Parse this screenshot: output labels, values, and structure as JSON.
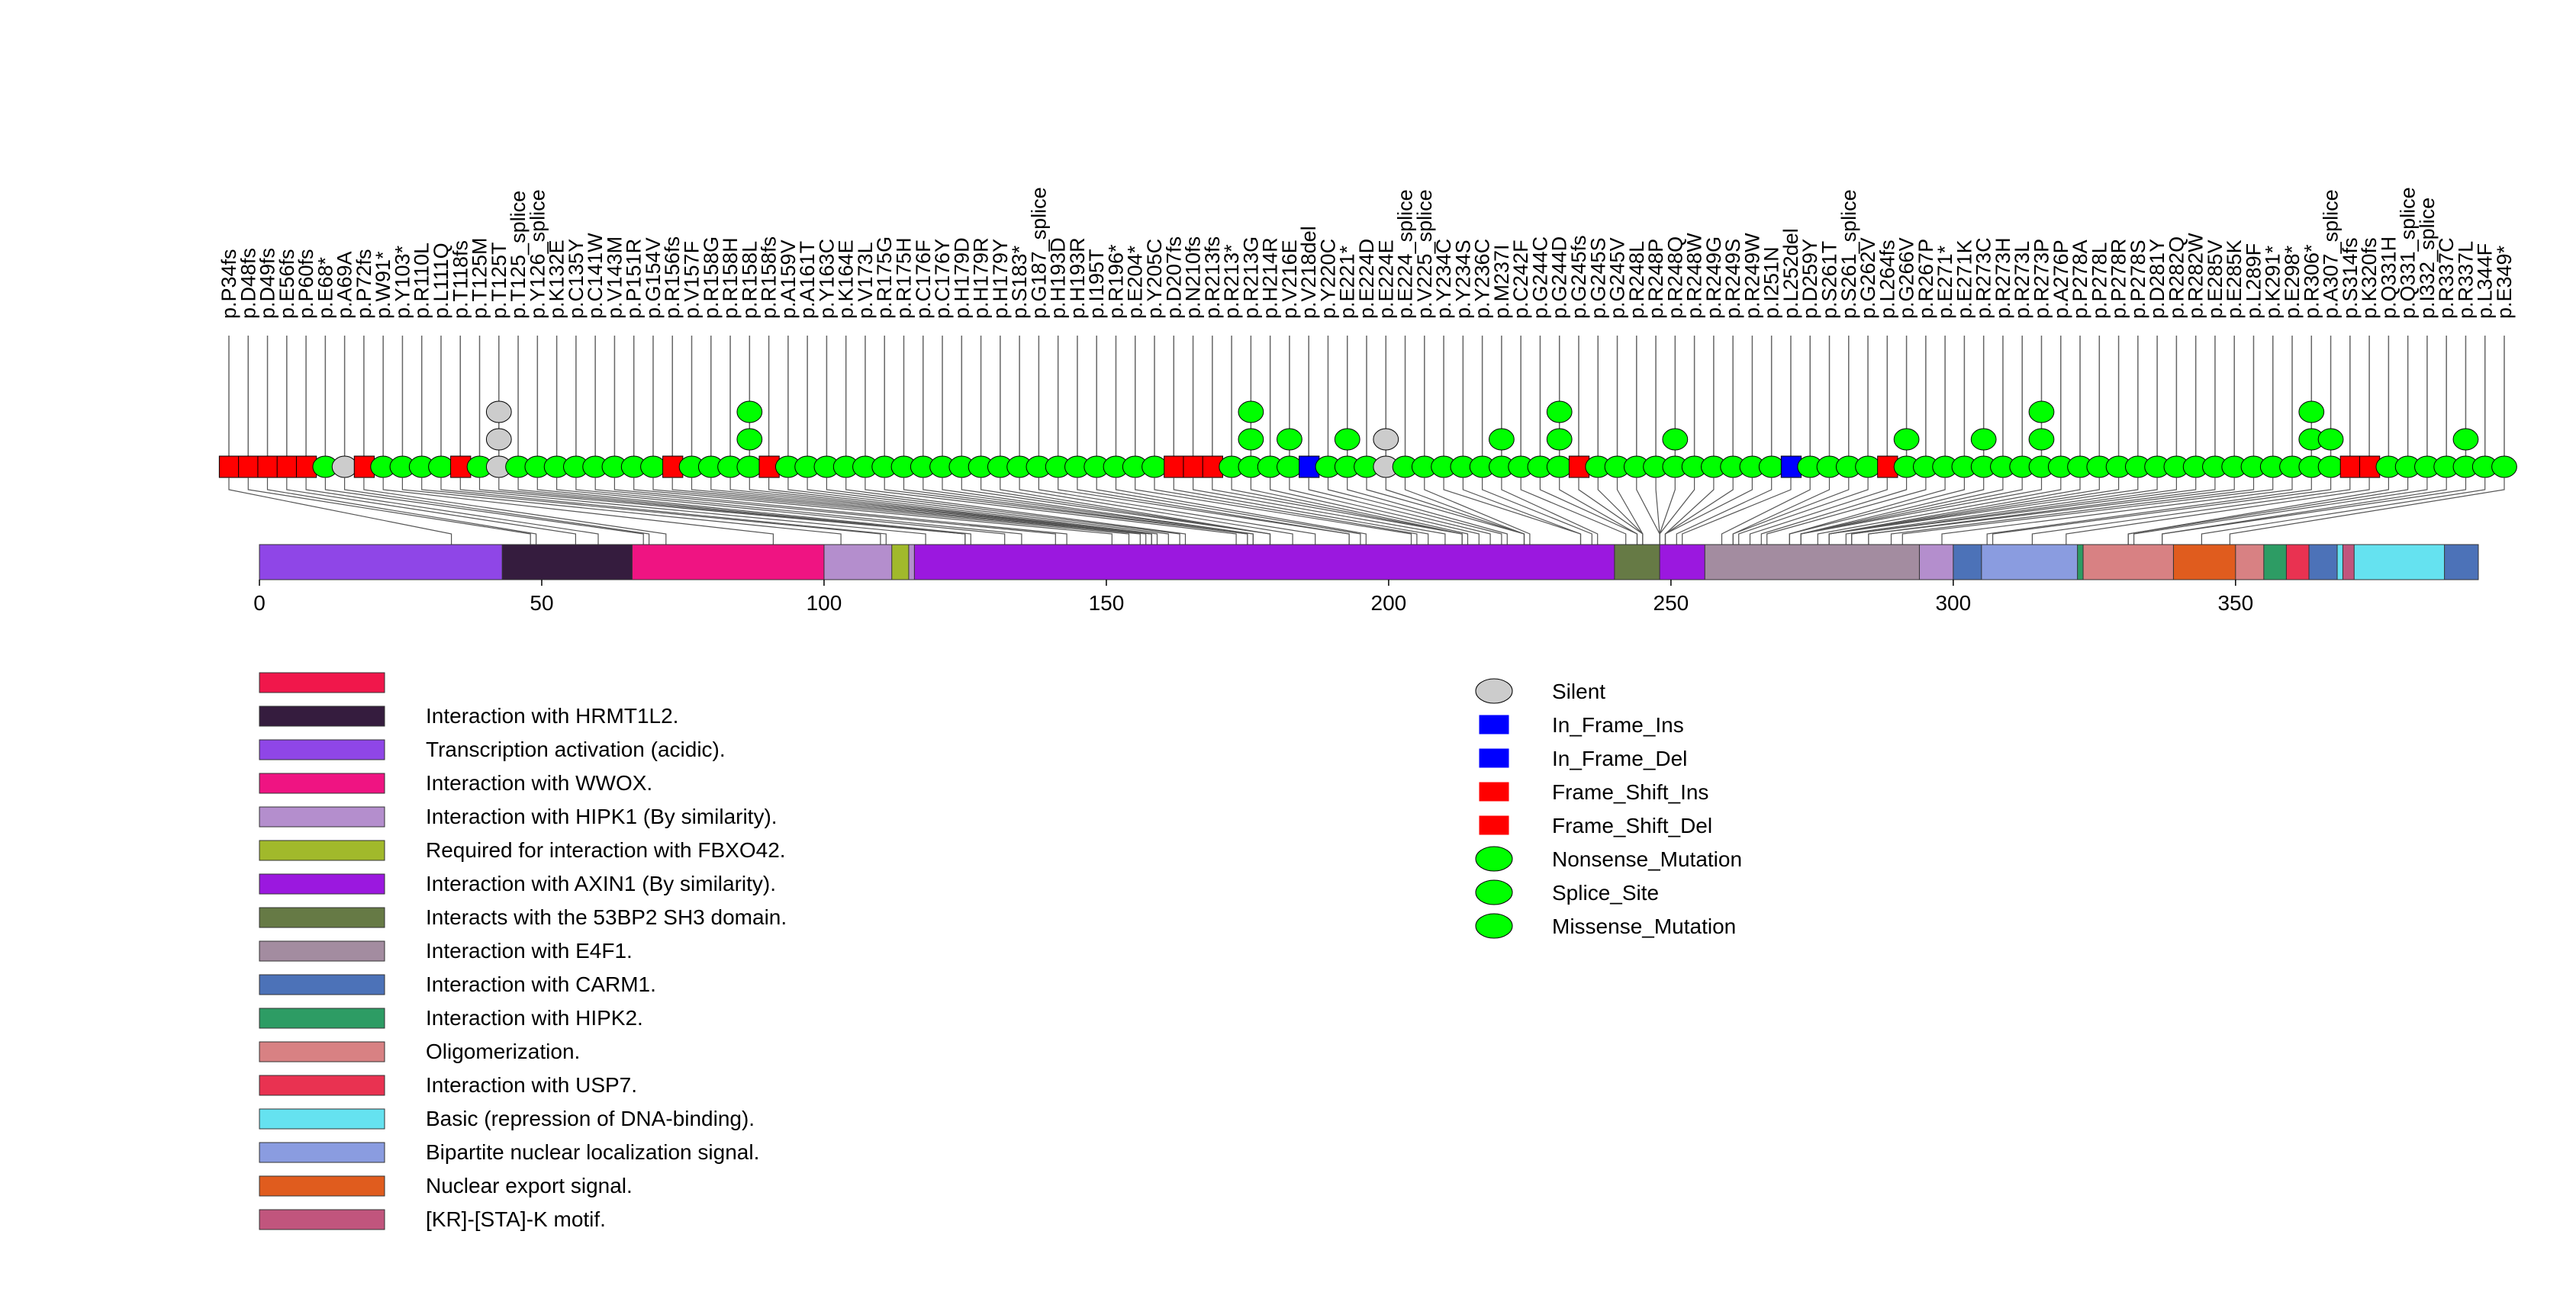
{
  "chart_data": {
    "type": "lollipop",
    "title": "",
    "xlabel": "",
    "ylabel": "",
    "xlim": [
      0,
      393
    ],
    "x_ticks": [
      0,
      50,
      100,
      150,
      200,
      250,
      300,
      350
    ],
    "x_tick_labels": [
      "0",
      "50",
      "100",
      "150",
      "200",
      "250",
      "300",
      "350"
    ],
    "colors": {
      "Silent": "#cccccc",
      "In_Frame_Ins": "#0000ff",
      "In_Frame_Del": "#0000ff",
      "Frame_Shift_Ins": "#ff0000",
      "Frame_Shift_Del": "#ff0000",
      "Nonsense_Mutation": "#00ff00",
      "Splice_Site": "#00ff00",
      "Missense_Mutation": "#00ff00"
    },
    "legend_types": [
      "Silent",
      "In_Frame_Ins",
      "In_Frame_Del",
      "Frame_Shift_Ins",
      "Frame_Shift_Del",
      "Nonsense_Mutation",
      "Splice_Site",
      "Missense_Mutation"
    ],
    "legend_shapes": [
      "ellipse",
      "rect",
      "rect",
      "rect",
      "rect",
      "ellipse",
      "ellipse",
      "ellipse"
    ],
    "mutations": [
      {
        "label": "p.P34fs",
        "pos": 34,
        "type": "Frame_Shift_Del",
        "count": 1
      },
      {
        "label": "p.D48fs",
        "pos": 48,
        "type": "Frame_Shift_Del",
        "count": 1
      },
      {
        "label": "p.D49fs",
        "pos": 49,
        "type": "Frame_Shift_Del",
        "count": 1
      },
      {
        "label": "p.E56fs",
        "pos": 56,
        "type": "Frame_Shift_Del",
        "count": 1
      },
      {
        "label": "p.P60fs",
        "pos": 60,
        "type": "Frame_Shift_Del",
        "count": 1
      },
      {
        "label": "p.E68*",
        "pos": 68,
        "type": "Nonsense_Mutation",
        "count": 1
      },
      {
        "label": "p.A69A",
        "pos": 69,
        "type": "Silent",
        "count": 1
      },
      {
        "label": "p.P72fs",
        "pos": 72,
        "type": "Frame_Shift_Del",
        "count": 1
      },
      {
        "label": "p.W91*",
        "pos": 91,
        "type": "Nonsense_Mutation",
        "count": 1
      },
      {
        "label": "p.Y103*",
        "pos": 103,
        "type": "Nonsense_Mutation",
        "count": 1
      },
      {
        "label": "p.R110L",
        "pos": 110,
        "type": "Missense_Mutation",
        "count": 1
      },
      {
        "label": "p.L111Q",
        "pos": 111,
        "type": "Missense_Mutation",
        "count": 1
      },
      {
        "label": "p.T118fs",
        "pos": 118,
        "type": "Frame_Shift_Del",
        "count": 1
      },
      {
        "label": "p.T125M",
        "pos": 125,
        "type": "Missense_Mutation",
        "count": 1
      },
      {
        "label": "p.T125T",
        "pos": 125,
        "type": "Silent",
        "count": 3
      },
      {
        "label": "p.T125_splice",
        "pos": 125,
        "type": "Splice_Site",
        "count": 1
      },
      {
        "label": "p.Y126_splice",
        "pos": 126,
        "type": "Splice_Site",
        "count": 1
      },
      {
        "label": "p.K132E",
        "pos": 132,
        "type": "Missense_Mutation",
        "count": 1
      },
      {
        "label": "p.C135Y",
        "pos": 135,
        "type": "Missense_Mutation",
        "count": 1
      },
      {
        "label": "p.C141W",
        "pos": 141,
        "type": "Missense_Mutation",
        "count": 1
      },
      {
        "label": "p.V143M",
        "pos": 143,
        "type": "Missense_Mutation",
        "count": 1
      },
      {
        "label": "p.P151R",
        "pos": 151,
        "type": "Missense_Mutation",
        "count": 1
      },
      {
        "label": "p.G154V",
        "pos": 154,
        "type": "Missense_Mutation",
        "count": 1
      },
      {
        "label": "p.R156fs",
        "pos": 156,
        "type": "Frame_Shift_Del",
        "count": 1
      },
      {
        "label": "p.V157F",
        "pos": 157,
        "type": "Missense_Mutation",
        "count": 1
      },
      {
        "label": "p.R158G",
        "pos": 158,
        "type": "Missense_Mutation",
        "count": 1
      },
      {
        "label": "p.R158H",
        "pos": 158,
        "type": "Missense_Mutation",
        "count": 1
      },
      {
        "label": "p.R158L",
        "pos": 158,
        "type": "Missense_Mutation",
        "count": 3
      },
      {
        "label": "p.R158fs",
        "pos": 158,
        "type": "Frame_Shift_Del",
        "count": 1
      },
      {
        "label": "p.A159V",
        "pos": 159,
        "type": "Missense_Mutation",
        "count": 1
      },
      {
        "label": "p.A161T",
        "pos": 161,
        "type": "Missense_Mutation",
        "count": 1
      },
      {
        "label": "p.Y163C",
        "pos": 163,
        "type": "Missense_Mutation",
        "count": 1
      },
      {
        "label": "p.K164E",
        "pos": 164,
        "type": "Missense_Mutation",
        "count": 1
      },
      {
        "label": "p.V173L",
        "pos": 173,
        "type": "Missense_Mutation",
        "count": 1
      },
      {
        "label": "p.R175G",
        "pos": 175,
        "type": "Missense_Mutation",
        "count": 1
      },
      {
        "label": "p.R175H",
        "pos": 175,
        "type": "Missense_Mutation",
        "count": 1
      },
      {
        "label": "p.C176F",
        "pos": 176,
        "type": "Missense_Mutation",
        "count": 1
      },
      {
        "label": "p.C176Y",
        "pos": 176,
        "type": "Missense_Mutation",
        "count": 1
      },
      {
        "label": "p.H179D",
        "pos": 179,
        "type": "Missense_Mutation",
        "count": 1
      },
      {
        "label": "p.H179R",
        "pos": 179,
        "type": "Missense_Mutation",
        "count": 1
      },
      {
        "label": "p.H179Y",
        "pos": 179,
        "type": "Missense_Mutation",
        "count": 1
      },
      {
        "label": "p.S183*",
        "pos": 183,
        "type": "Nonsense_Mutation",
        "count": 1
      },
      {
        "label": "p.G187_splice",
        "pos": 187,
        "type": "Splice_Site",
        "count": 1
      },
      {
        "label": "p.H193D",
        "pos": 193,
        "type": "Missense_Mutation",
        "count": 1
      },
      {
        "label": "p.H193R",
        "pos": 193,
        "type": "Missense_Mutation",
        "count": 1
      },
      {
        "label": "p.I195T",
        "pos": 195,
        "type": "Missense_Mutation",
        "count": 1
      },
      {
        "label": "p.R196*",
        "pos": 196,
        "type": "Nonsense_Mutation",
        "count": 1
      },
      {
        "label": "p.E204*",
        "pos": 204,
        "type": "Nonsense_Mutation",
        "count": 1
      },
      {
        "label": "p.Y205C",
        "pos": 205,
        "type": "Missense_Mutation",
        "count": 1
      },
      {
        "label": "p.D207fs",
        "pos": 207,
        "type": "Frame_Shift_Del",
        "count": 1
      },
      {
        "label": "p.N210fs",
        "pos": 210,
        "type": "Frame_Shift_Del",
        "count": 1
      },
      {
        "label": "p.R213fs",
        "pos": 213,
        "type": "Frame_Shift_Del",
        "count": 1
      },
      {
        "label": "p.R213*",
        "pos": 213,
        "type": "Nonsense_Mutation",
        "count": 1
      },
      {
        "label": "p.R213G",
        "pos": 213,
        "type": "Missense_Mutation",
        "count": 3
      },
      {
        "label": "p.H214R",
        "pos": 214,
        "type": "Missense_Mutation",
        "count": 1
      },
      {
        "label": "p.V216E",
        "pos": 216,
        "type": "Missense_Mutation",
        "count": 2
      },
      {
        "label": "p.V218del",
        "pos": 218,
        "type": "In_Frame_Del",
        "count": 1
      },
      {
        "label": "p.Y220C",
        "pos": 220,
        "type": "Missense_Mutation",
        "count": 1
      },
      {
        "label": "p.E221*",
        "pos": 221,
        "type": "Nonsense_Mutation",
        "count": 2
      },
      {
        "label": "p.E224D",
        "pos": 224,
        "type": "Missense_Mutation",
        "count": 1
      },
      {
        "label": "p.E224E",
        "pos": 224,
        "type": "Silent",
        "count": 2
      },
      {
        "label": "p.E224_splice",
        "pos": 224,
        "type": "Splice_Site",
        "count": 1
      },
      {
        "label": "p.V225_splice",
        "pos": 225,
        "type": "Splice_Site",
        "count": 1
      },
      {
        "label": "p.Y234C",
        "pos": 234,
        "type": "Missense_Mutation",
        "count": 1
      },
      {
        "label": "p.Y234S",
        "pos": 234,
        "type": "Missense_Mutation",
        "count": 1
      },
      {
        "label": "p.Y236C",
        "pos": 236,
        "type": "Missense_Mutation",
        "count": 1
      },
      {
        "label": "p.M237I",
        "pos": 237,
        "type": "Missense_Mutation",
        "count": 2
      },
      {
        "label": "p.C242F",
        "pos": 242,
        "type": "Missense_Mutation",
        "count": 1
      },
      {
        "label": "p.G244C",
        "pos": 244,
        "type": "Missense_Mutation",
        "count": 1
      },
      {
        "label": "p.G244D",
        "pos": 244,
        "type": "Missense_Mutation",
        "count": 3
      },
      {
        "label": "p.G245fs",
        "pos": 245,
        "type": "Frame_Shift_Del",
        "count": 1
      },
      {
        "label": "p.G245S",
        "pos": 245,
        "type": "Missense_Mutation",
        "count": 1
      },
      {
        "label": "p.G245V",
        "pos": 245,
        "type": "Missense_Mutation",
        "count": 1
      },
      {
        "label": "p.R248L",
        "pos": 248,
        "type": "Missense_Mutation",
        "count": 1
      },
      {
        "label": "p.R248P",
        "pos": 248,
        "type": "Missense_Mutation",
        "count": 1
      },
      {
        "label": "p.R248Q",
        "pos": 248,
        "type": "Missense_Mutation",
        "count": 2
      },
      {
        "label": "p.R248W",
        "pos": 248,
        "type": "Missense_Mutation",
        "count": 1
      },
      {
        "label": "p.R249G",
        "pos": 249,
        "type": "Missense_Mutation",
        "count": 1
      },
      {
        "label": "p.R249S",
        "pos": 249,
        "type": "Missense_Mutation",
        "count": 1
      },
      {
        "label": "p.R249W",
        "pos": 249,
        "type": "Missense_Mutation",
        "count": 1
      },
      {
        "label": "p.I251N",
        "pos": 251,
        "type": "Missense_Mutation",
        "count": 1
      },
      {
        "label": "p.L252del",
        "pos": 252,
        "type": "In_Frame_Del",
        "count": 1
      },
      {
        "label": "p.D259Y",
        "pos": 259,
        "type": "Missense_Mutation",
        "count": 1
      },
      {
        "label": "p.S261T",
        "pos": 261,
        "type": "Missense_Mutation",
        "count": 1
      },
      {
        "label": "p.S261_splice",
        "pos": 261,
        "type": "Splice_Site",
        "count": 1
      },
      {
        "label": "p.G262V",
        "pos": 262,
        "type": "Missense_Mutation",
        "count": 1
      },
      {
        "label": "p.L264fs",
        "pos": 264,
        "type": "Frame_Shift_Del",
        "count": 1
      },
      {
        "label": "p.G266V",
        "pos": 266,
        "type": "Missense_Mutation",
        "count": 2
      },
      {
        "label": "p.R267P",
        "pos": 267,
        "type": "Missense_Mutation",
        "count": 1
      },
      {
        "label": "p.E271*",
        "pos": 271,
        "type": "Nonsense_Mutation",
        "count": 1
      },
      {
        "label": "p.E271K",
        "pos": 271,
        "type": "Missense_Mutation",
        "count": 1
      },
      {
        "label": "p.R273C",
        "pos": 273,
        "type": "Missense_Mutation",
        "count": 2
      },
      {
        "label": "p.R273H",
        "pos": 273,
        "type": "Missense_Mutation",
        "count": 1
      },
      {
        "label": "p.R273L",
        "pos": 273,
        "type": "Missense_Mutation",
        "count": 1
      },
      {
        "label": "p.R273P",
        "pos": 273,
        "type": "Missense_Mutation",
        "count": 3
      },
      {
        "label": "p.A276P",
        "pos": 276,
        "type": "Missense_Mutation",
        "count": 1
      },
      {
        "label": "p.P278A",
        "pos": 278,
        "type": "Missense_Mutation",
        "count": 1
      },
      {
        "label": "p.P278L",
        "pos": 278,
        "type": "Missense_Mutation",
        "count": 1
      },
      {
        "label": "p.P278R",
        "pos": 278,
        "type": "Missense_Mutation",
        "count": 1
      },
      {
        "label": "p.P278S",
        "pos": 278,
        "type": "Missense_Mutation",
        "count": 1
      },
      {
        "label": "p.D281Y",
        "pos": 281,
        "type": "Missense_Mutation",
        "count": 1
      },
      {
        "label": "p.R282Q",
        "pos": 282,
        "type": "Missense_Mutation",
        "count": 1
      },
      {
        "label": "p.R282W",
        "pos": 282,
        "type": "Missense_Mutation",
        "count": 1
      },
      {
        "label": "p.E285V",
        "pos": 285,
        "type": "Missense_Mutation",
        "count": 1
      },
      {
        "label": "p.E285K",
        "pos": 285,
        "type": "Missense_Mutation",
        "count": 1
      },
      {
        "label": "p.L289F",
        "pos": 289,
        "type": "Missense_Mutation",
        "count": 1
      },
      {
        "label": "p.K291*",
        "pos": 291,
        "type": "Nonsense_Mutation",
        "count": 1
      },
      {
        "label": "p.E298*",
        "pos": 298,
        "type": "Nonsense_Mutation",
        "count": 1
      },
      {
        "label": "p.R306*",
        "pos": 306,
        "type": "Nonsense_Mutation",
        "count": 3
      },
      {
        "label": "p.A307_splice",
        "pos": 307,
        "type": "Splice_Site",
        "count": 2
      },
      {
        "label": "p.S314fs",
        "pos": 314,
        "type": "Frame_Shift_Del",
        "count": 1
      },
      {
        "label": "p.K320fs",
        "pos": 320,
        "type": "Frame_Shift_Del",
        "count": 1
      },
      {
        "label": "p.Q331H",
        "pos": 331,
        "type": "Missense_Mutation",
        "count": 1
      },
      {
        "label": "p.Q331_splice",
        "pos": 331,
        "type": "Splice_Site",
        "count": 1
      },
      {
        "label": "p.I332_splice",
        "pos": 332,
        "type": "Splice_Site",
        "count": 1
      },
      {
        "label": "p.R337C",
        "pos": 337,
        "type": "Missense_Mutation",
        "count": 1
      },
      {
        "label": "p.R337L",
        "pos": 337,
        "type": "Missense_Mutation",
        "count": 2
      },
      {
        "label": "p.L344F",
        "pos": 344,
        "type": "Missense_Mutation",
        "count": 1
      },
      {
        "label": "p.E349*",
        "pos": 349,
        "type": "Nonsense_Mutation",
        "count": 1
      }
    ],
    "domains": [
      {
        "start": 0,
        "end": 393,
        "label": "",
        "color": "#f0174b"
      },
      {
        "start": 1,
        "end": 83,
        "label": "Interaction with HRMT1L2.",
        "color": "#351c3e"
      },
      {
        "start": 0,
        "end": 43,
        "label": "Transcription activation (acidic).",
        "color": "#8f46e7"
      },
      {
        "start": 66,
        "end": 110,
        "label": "Interaction with WWOX.",
        "color": "#ef1482"
      },
      {
        "start": 100,
        "end": 370,
        "label": "Interaction with HIPK1 (By similarity).",
        "color": "#b48ecd"
      },
      {
        "start": 112,
        "end": 115,
        "label": "Required for interaction with FBXO42.",
        "color": "#a1b92b"
      },
      {
        "start": 116,
        "end": 292,
        "label": "Interaction with AXIN1 (By similarity).",
        "color": "#9b18df"
      },
      {
        "start": 240,
        "end": 248,
        "label": "Interacts with the 53BP2 SH3 domain.",
        "color": "#667a45"
      },
      {
        "start": 256,
        "end": 294,
        "label": "Interaction with E4F1.",
        "color": "#a38ca0"
      },
      {
        "start": 300,
        "end": 393,
        "label": "Interaction with CARM1.",
        "color": "#4c72b8"
      },
      {
        "start": 319,
        "end": 360,
        "label": "Interaction with HIPK2.",
        "color": "#2d9c64"
      },
      {
        "start": 323,
        "end": 355,
        "label": "Oligomerization.",
        "color": "#d88183"
      },
      {
        "start": 359,
        "end": 363,
        "label": "Interaction with USP7.",
        "color": "#e93251"
      },
      {
        "start": 368,
        "end": 387,
        "label": "Basic (repression of DNA-binding).",
        "color": "#65e2f0"
      },
      {
        "start": 305,
        "end": 322,
        "label": "Bipartite nuclear localization signal.",
        "color": "#8a9ce0"
      },
      {
        "start": 339,
        "end": 350,
        "label": "Nuclear export signal.",
        "color": "#e05c1e"
      },
      {
        "start": 369,
        "end": 371,
        "label": "[KR]-[STA]-K motif.",
        "color": "#c1557d"
      }
    ]
  }
}
